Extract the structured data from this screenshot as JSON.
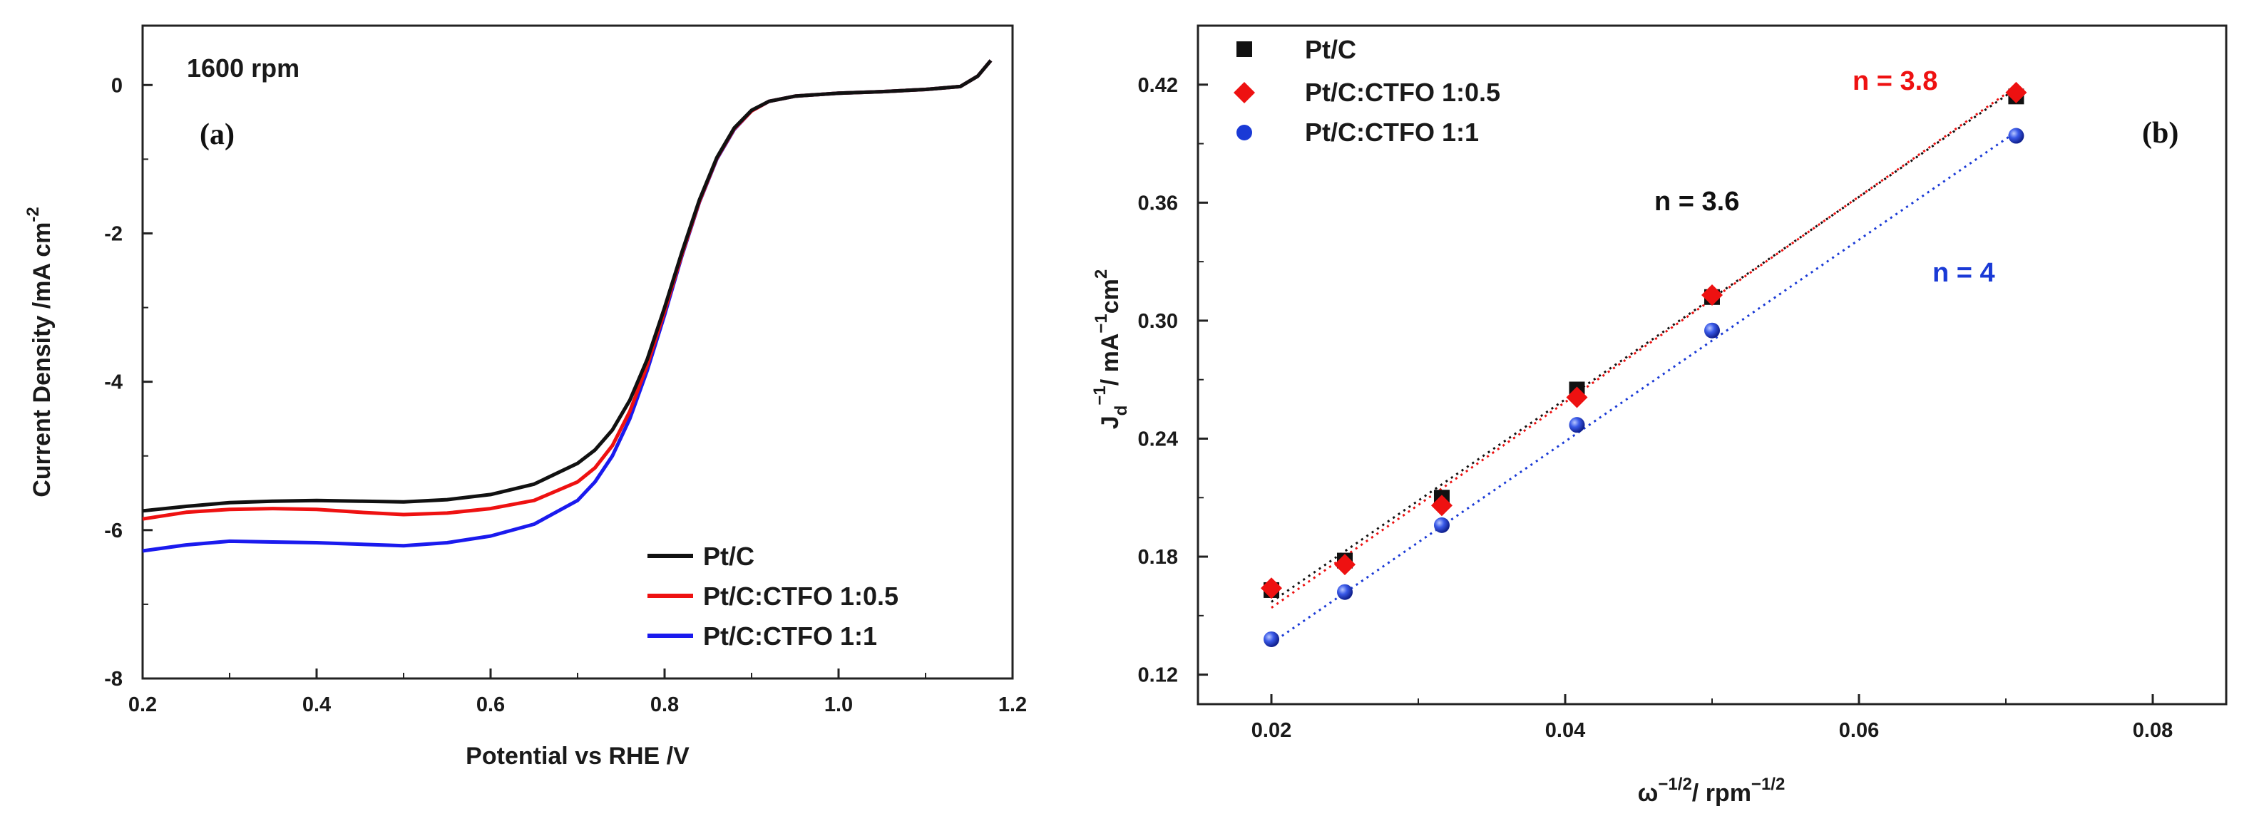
{
  "chart_data": [
    {
      "type": "line",
      "panel_label": "(a)",
      "annotation": "1600 rpm",
      "xlabel": "Potential vs RHE /V",
      "ylabel": "Current Density /mA cm",
      "ylabel_sup": "-2",
      "xlim": [
        0.2,
        1.2
      ],
      "ylim": [
        -8,
        0.8
      ],
      "xticks": [
        0.2,
        0.4,
        0.6,
        0.8,
        1.0,
        1.2
      ],
      "xtick_labels": [
        "0.2",
        "0.4",
        "0.6",
        "0.8",
        "1.0",
        "1.2"
      ],
      "yticks": [
        -8,
        -6,
        -4,
        -2,
        0
      ],
      "ytick_labels": [
        "-8",
        "-6",
        "-4",
        "-2",
        "0"
      ],
      "legend_position": "bottom-right",
      "series": [
        {
          "name": "Pt/C",
          "color": "#111111",
          "x": [
            0.2,
            0.25,
            0.3,
            0.35,
            0.4,
            0.45,
            0.5,
            0.55,
            0.6,
            0.65,
            0.7,
            0.72,
            0.74,
            0.76,
            0.78,
            0.8,
            0.82,
            0.84,
            0.86,
            0.88,
            0.9,
            0.92,
            0.95,
            1.0,
            1.05,
            1.1,
            1.14,
            1.16,
            1.175
          ],
          "y": [
            -5.74,
            -5.68,
            -5.63,
            -5.61,
            -5.6,
            -5.61,
            -5.62,
            -5.59,
            -5.52,
            -5.38,
            -5.1,
            -4.92,
            -4.65,
            -4.25,
            -3.7,
            -3.0,
            -2.25,
            -1.55,
            -0.98,
            -0.58,
            -0.34,
            -0.22,
            -0.15,
            -0.11,
            -0.09,
            -0.06,
            -0.02,
            0.12,
            0.33
          ]
        },
        {
          "name": "Pt/C:CTFO 1:0.5",
          "color": "#ee1111",
          "x": [
            0.2,
            0.25,
            0.3,
            0.35,
            0.4,
            0.45,
            0.5,
            0.55,
            0.6,
            0.65,
            0.7,
            0.72,
            0.74,
            0.76,
            0.78,
            0.8,
            0.82,
            0.84,
            0.86,
            0.88,
            0.9,
            0.92,
            0.95,
            1.0,
            1.05,
            1.1,
            1.14,
            1.16,
            1.175
          ],
          "y": [
            -5.85,
            -5.76,
            -5.72,
            -5.71,
            -5.72,
            -5.76,
            -5.79,
            -5.77,
            -5.71,
            -5.6,
            -5.35,
            -5.16,
            -4.86,
            -4.4,
            -3.78,
            -3.05,
            -2.28,
            -1.57,
            -0.99,
            -0.59,
            -0.35,
            -0.22,
            -0.15,
            -0.11,
            -0.09,
            -0.06,
            -0.02,
            0.12,
            0.33
          ]
        },
        {
          "name": "Pt/C:CTFO 1:1",
          "color": "#1a1aee",
          "x": [
            0.2,
            0.25,
            0.3,
            0.35,
            0.4,
            0.45,
            0.5,
            0.55,
            0.6,
            0.65,
            0.7,
            0.72,
            0.74,
            0.76,
            0.78,
            0.8,
            0.82,
            0.84,
            0.86,
            0.88,
            0.9,
            0.92,
            0.95,
            1.0,
            1.05,
            1.1,
            1.14,
            1.16,
            1.175
          ],
          "y": [
            -6.28,
            -6.2,
            -6.15,
            -6.16,
            -6.17,
            -6.19,
            -6.21,
            -6.17,
            -6.08,
            -5.92,
            -5.6,
            -5.35,
            -5.0,
            -4.5,
            -3.85,
            -3.1,
            -2.3,
            -1.58,
            -1.0,
            -0.6,
            -0.35,
            -0.22,
            -0.15,
            -0.11,
            -0.09,
            -0.06,
            -0.02,
            0.12,
            0.33
          ]
        }
      ]
    },
    {
      "type": "scatter",
      "panel_label": "(b)",
      "xlabel": "ω",
      "xlabel_sup": "−1/2",
      "xlabel_mid": "/ rpm",
      "xlabel_sup2": "−1/2",
      "ylabel_J": "J",
      "ylabel_sub": "d",
      "ylabel_sup1": "−1",
      "ylabel_mid": "/ mA",
      "ylabel_sup2": "−1",
      "ylabel_cm": "cm",
      "ylabel_sup3": "2",
      "xlim": [
        0.015,
        0.085
      ],
      "ylim": [
        0.105,
        0.45
      ],
      "xticks": [
        0.02,
        0.04,
        0.06,
        0.08
      ],
      "xtick_labels": [
        "0.02",
        "0.04",
        "0.06",
        "0.08"
      ],
      "yticks": [
        0.12,
        0.18,
        0.24,
        0.3,
        0.36,
        0.42
      ],
      "ytick_labels": [
        "0.12",
        "0.18",
        "0.24",
        "0.30",
        "0.36",
        "0.42"
      ],
      "legend_position": "top-left",
      "series": [
        {
          "name": "Pt/C",
          "color": "#111111",
          "marker": "square",
          "x": [
            0.02,
            0.025,
            0.0316,
            0.0408,
            0.05,
            0.0707
          ],
          "y": [
            0.163,
            0.178,
            0.21,
            0.265,
            0.312,
            0.414
          ],
          "fit_x": [
            0.02,
            0.0707
          ],
          "fit_y": [
            0.157,
            0.418
          ]
        },
        {
          "name": "Pt/C:CTFO 1:0.5",
          "color": "#ee1111",
          "marker": "diamond",
          "x": [
            0.02,
            0.025,
            0.0316,
            0.0408,
            0.05,
            0.0707
          ],
          "y": [
            0.164,
            0.176,
            0.206,
            0.261,
            0.313,
            0.416
          ],
          "fit_x": [
            0.02,
            0.0707
          ],
          "fit_y": [
            0.154,
            0.419
          ]
        },
        {
          "name": "Pt/C:CTFO 1:1",
          "color": "#1a3ad6",
          "marker": "circle",
          "x": [
            0.02,
            0.025,
            0.0316,
            0.0408,
            0.05,
            0.0707
          ],
          "y": [
            0.138,
            0.162,
            0.196,
            0.247,
            0.295,
            0.394
          ],
          "fit_x": [
            0.02,
            0.0707
          ],
          "fit_y": [
            0.136,
            0.396
          ]
        }
      ],
      "annotations": [
        {
          "text": "n = 3.8",
          "color": "#ee1111"
        },
        {
          "text": "n = 3.6",
          "color": "#111111"
        },
        {
          "text": "n = 4",
          "color": "#1a3ad6"
        }
      ]
    }
  ]
}
